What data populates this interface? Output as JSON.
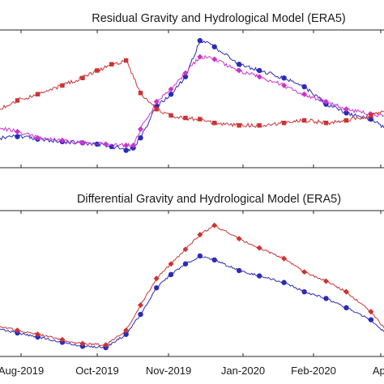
{
  "chart_data": [
    {
      "type": "line",
      "title": "Residual Gravity and Hydrological Model (ERA5)",
      "xlabel": "",
      "ylabel": "",
      "x_ticks": [
        "Aug-2019",
        "Oct-2019",
        "Nov-2019",
        "Jan-2020",
        "Feb-2020",
        "Apr"
      ],
      "xlim": [
        "2019-07-20",
        "2020-04-10"
      ],
      "ylim": [
        0,
        1
      ],
      "y_units": "normalized (axis ticks not visible)",
      "grid": false,
      "legend": "none",
      "series": [
        {
          "color": "#2b2bb8",
          "marker": "circle",
          "x": [
            "2019-07-20",
            "2019-08-01",
            "2019-08-15",
            "2019-09-01",
            "2019-09-15",
            "2019-09-25",
            "2019-10-05",
            "2019-10-15",
            "2019-10-20",
            "2019-10-25",
            "2019-11-05",
            "2019-11-15",
            "2019-11-25",
            "2019-12-05",
            "2019-12-15",
            "2020-01-01",
            "2020-01-15",
            "2020-02-01",
            "2020-02-15",
            "2020-03-01",
            "2020-03-15",
            "2020-04-01",
            "2020-04-10"
          ],
          "y": [
            0.2,
            0.21,
            0.19,
            0.17,
            0.16,
            0.15,
            0.13,
            0.1,
            0.12,
            0.2,
            0.45,
            0.55,
            0.69,
            0.98,
            0.93,
            0.79,
            0.74,
            0.68,
            0.61,
            0.47,
            0.4,
            0.35,
            0.28
          ]
        },
        {
          "color": "#cc33cc",
          "marker": "diamond",
          "x": [
            "2019-07-20",
            "2019-08-01",
            "2019-08-15",
            "2019-09-01",
            "2019-09-15",
            "2019-10-01",
            "2019-10-15",
            "2019-10-20",
            "2019-10-25",
            "2019-11-05",
            "2019-11-15",
            "2019-11-25",
            "2019-12-05",
            "2019-12-15",
            "2020-01-01",
            "2020-01-15",
            "2020-02-01",
            "2020-02-15",
            "2020-03-01",
            "2020-03-15",
            "2020-04-01",
            "2020-04-10"
          ],
          "y": [
            0.28,
            0.25,
            0.2,
            0.18,
            0.16,
            0.15,
            0.14,
            0.14,
            0.27,
            0.49,
            0.59,
            0.72,
            0.85,
            0.83,
            0.74,
            0.69,
            0.62,
            0.55,
            0.49,
            0.43,
            0.39,
            0.38
          ]
        },
        {
          "color": "#cc3333",
          "marker": "square",
          "x": [
            "2019-07-20",
            "2019-08-01",
            "2019-08-15",
            "2019-09-01",
            "2019-09-15",
            "2019-09-25",
            "2019-10-05",
            "2019-10-15",
            "2019-10-25",
            "2019-11-05",
            "2019-11-15",
            "2019-11-25",
            "2019-12-05",
            "2019-12-15",
            "2020-01-01",
            "2020-01-15",
            "2020-02-01",
            "2020-02-15",
            "2020-03-01",
            "2020-03-15",
            "2020-04-01",
            "2020-04-10"
          ],
          "y": [
            0.43,
            0.5,
            0.55,
            0.62,
            0.68,
            0.74,
            0.79,
            0.82,
            0.56,
            0.43,
            0.38,
            0.36,
            0.35,
            0.32,
            0.3,
            0.3,
            0.32,
            0.34,
            0.32,
            0.34,
            0.38,
            0.41
          ]
        }
      ]
    },
    {
      "type": "line",
      "title": "Differential Gravity and Hydrological Model (ERA5)",
      "xlabel": "",
      "ylabel": "",
      "x_ticks": [
        "Aug-2019",
        "Oct-2019",
        "Nov-2019",
        "Jan-2020",
        "Feb-2020",
        "Apr"
      ],
      "xlim": [
        "2019-07-20",
        "2020-04-10"
      ],
      "ylim": [
        0,
        1
      ],
      "y_units": "normalized (axis ticks not visible)",
      "grid": false,
      "legend": "none",
      "series": [
        {
          "color": "#2b2bb8",
          "marker": "circle",
          "x": [
            "2019-07-20",
            "2019-08-01",
            "2019-08-15",
            "2019-09-01",
            "2019-09-15",
            "2019-10-01",
            "2019-10-15",
            "2019-10-25",
            "2019-11-05",
            "2019-11-15",
            "2019-11-25",
            "2019-12-05",
            "2019-12-15",
            "2020-01-01",
            "2020-01-15",
            "2020-02-01",
            "2020-02-15",
            "2020-03-01",
            "2020-03-15",
            "2020-04-01",
            "2020-04-10"
          ],
          "y": [
            0.17,
            0.14,
            0.11,
            0.07,
            0.04,
            0.03,
            0.13,
            0.28,
            0.48,
            0.58,
            0.66,
            0.72,
            0.69,
            0.61,
            0.57,
            0.52,
            0.45,
            0.4,
            0.33,
            0.24,
            0.15
          ]
        },
        {
          "color": "#cc3333",
          "marker": "diamond",
          "x": [
            "2019-07-20",
            "2019-08-01",
            "2019-08-15",
            "2019-09-01",
            "2019-09-15",
            "2019-10-01",
            "2019-10-15",
            "2019-10-25",
            "2019-11-05",
            "2019-11-15",
            "2019-11-25",
            "2019-12-05",
            "2019-12-15",
            "2020-01-01",
            "2020-01-15",
            "2020-02-01",
            "2020-02-15",
            "2020-03-01",
            "2020-03-15",
            "2020-04-01",
            "2020-04-10"
          ],
          "y": [
            0.19,
            0.16,
            0.13,
            0.09,
            0.06,
            0.05,
            0.16,
            0.35,
            0.55,
            0.66,
            0.77,
            0.88,
            0.95,
            0.85,
            0.78,
            0.7,
            0.6,
            0.53,
            0.45,
            0.3,
            0.18
          ]
        }
      ]
    }
  ]
}
